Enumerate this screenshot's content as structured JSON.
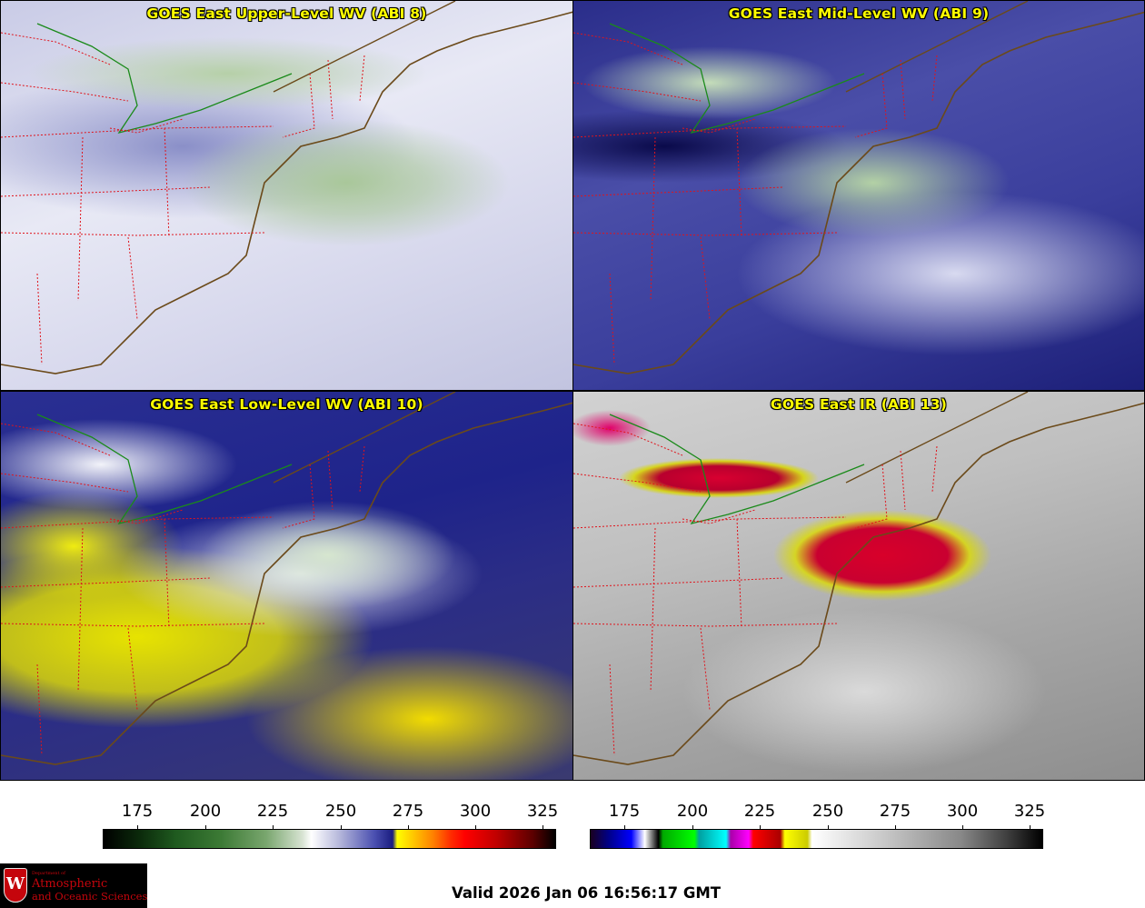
{
  "panels": {
    "upper": {
      "title": "GOES East Upper-Level WV (ABI 8)"
    },
    "mid": {
      "title": "GOES East Mid-Level WV (ABI 9)"
    },
    "low": {
      "title": "GOES East Low-Level WV (ABI 10)"
    },
    "ir": {
      "title": "GOES East IR (ABI 13)"
    }
  },
  "colorbars": {
    "left": {
      "ticks": [
        "175",
        "200",
        "225",
        "250",
        "275",
        "300",
        "325"
      ]
    },
    "right": {
      "ticks": [
        "175",
        "200",
        "225",
        "250",
        "275",
        "300",
        "325"
      ]
    }
  },
  "footer": {
    "valid_time": "Valid 2026 Jan 06 16:56:17 GMT",
    "logo_dept": "Department of",
    "logo_line1": "Atmospheric",
    "logo_line2": "and Oceanic Sciences",
    "logo_letter": "W"
  },
  "colors": {
    "coastline": "#6b4a1a",
    "state_borders": "#e0141c",
    "country_border": "#1a8a1a",
    "title_text": "#ffff00"
  }
}
